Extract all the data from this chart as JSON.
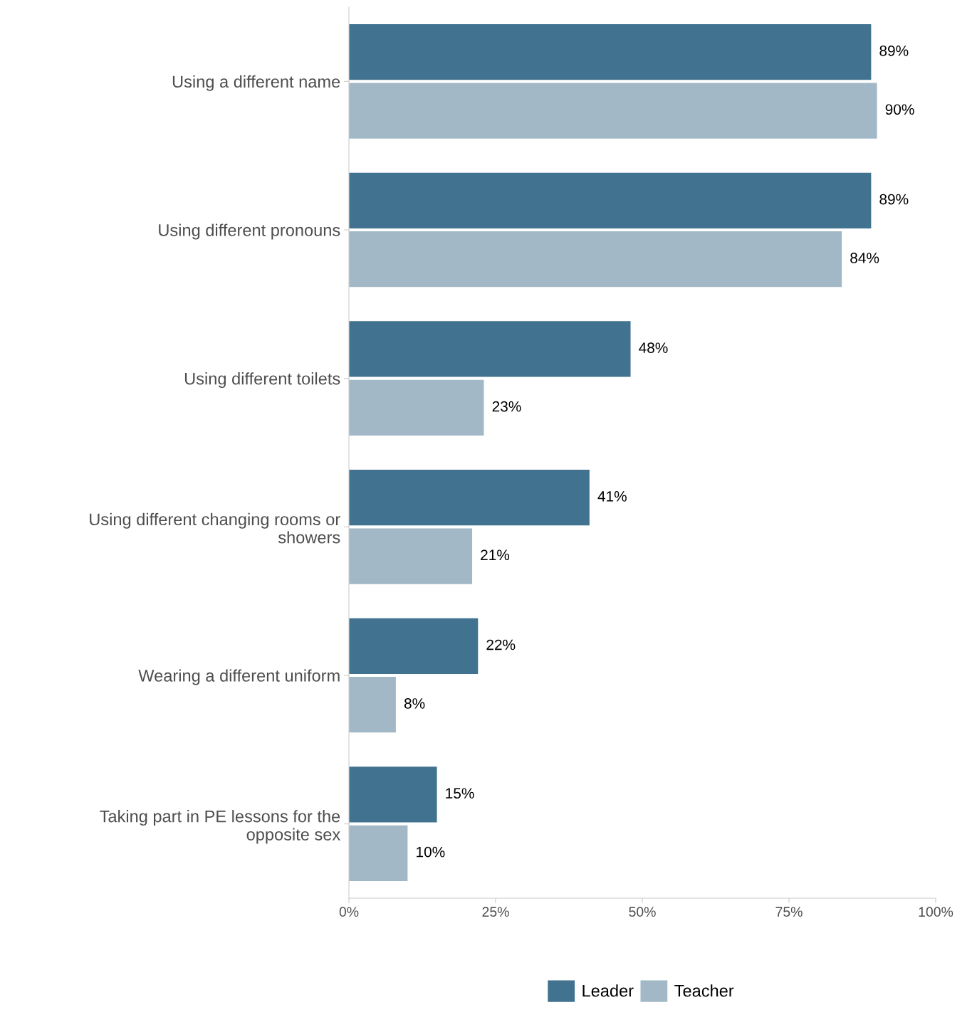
{
  "chart_data": {
    "type": "bar",
    "orientation": "horizontal",
    "categories": [
      "Using a different name",
      "Using different pronouns",
      "Using different toilets",
      "Using different changing rooms or\nshowers",
      "Wearing a different uniform",
      "Taking part in PE lessons for the\nopposite sex"
    ],
    "series": [
      {
        "name": "Leader",
        "color": "#41728f",
        "values": [
          89,
          89,
          48,
          41,
          22,
          15
        ],
        "value_labels": [
          "89%",
          "89%",
          "48%",
          "41%",
          "22%",
          "15%"
        ]
      },
      {
        "name": "Teacher",
        "color": "#a2b8c6",
        "values": [
          90,
          84,
          23,
          21,
          8,
          10
        ],
        "value_labels": [
          "90%",
          "84%",
          "23%",
          "21%",
          "8%",
          "10%"
        ]
      }
    ],
    "xlim": [
      0,
      100
    ],
    "xticks": [
      {
        "value": 0,
        "label": "0%"
      },
      {
        "value": 25,
        "label": "25%"
      },
      {
        "value": 50,
        "label": "50%"
      },
      {
        "value": 75,
        "label": "75%"
      },
      {
        "value": 100,
        "label": "100%"
      }
    ],
    "grid": false,
    "legend": "bottom"
  }
}
